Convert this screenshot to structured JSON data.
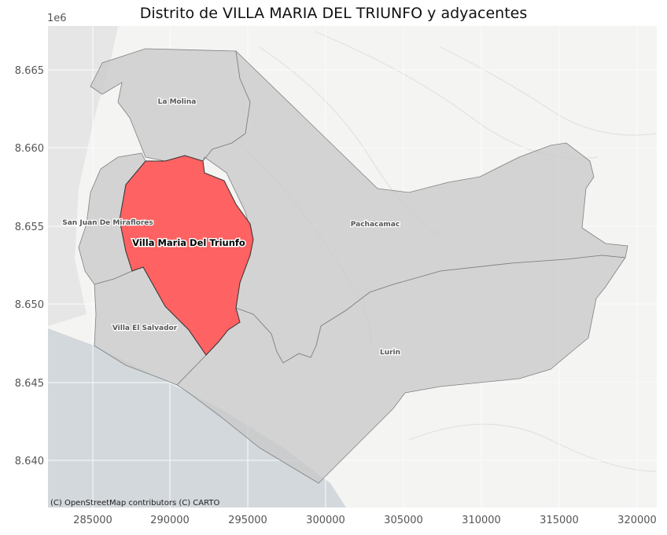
{
  "title": "Distrito de VILLA MARIA DEL TRIUNFO y adyacentes",
  "axes": {
    "y_offset_label": "1e6",
    "x_ticks": [
      "285000",
      "290000",
      "295000",
      "300000",
      "305000",
      "310000",
      "315000",
      "320000"
    ],
    "y_ticks": [
      "8.665",
      "8.660",
      "8.655",
      "8.650",
      "8.645",
      "8.640"
    ]
  },
  "map": {
    "basemap": "CARTO light",
    "attribution": "(C) OpenStreetMap contributors (C) CARTO",
    "highlight_color": "#ff5a5a",
    "neighbor_color": "#c8c8c8",
    "ocean_color": "#d3d8dc",
    "districts": {
      "highlight": "Villa Maria Del Triunfo",
      "la_molina": "La Molina",
      "sjm": "San Juan De Miraflores",
      "pachacamac": "Pachacamac",
      "ves": "Villa El Salvador",
      "lurin": "Lurin"
    }
  }
}
